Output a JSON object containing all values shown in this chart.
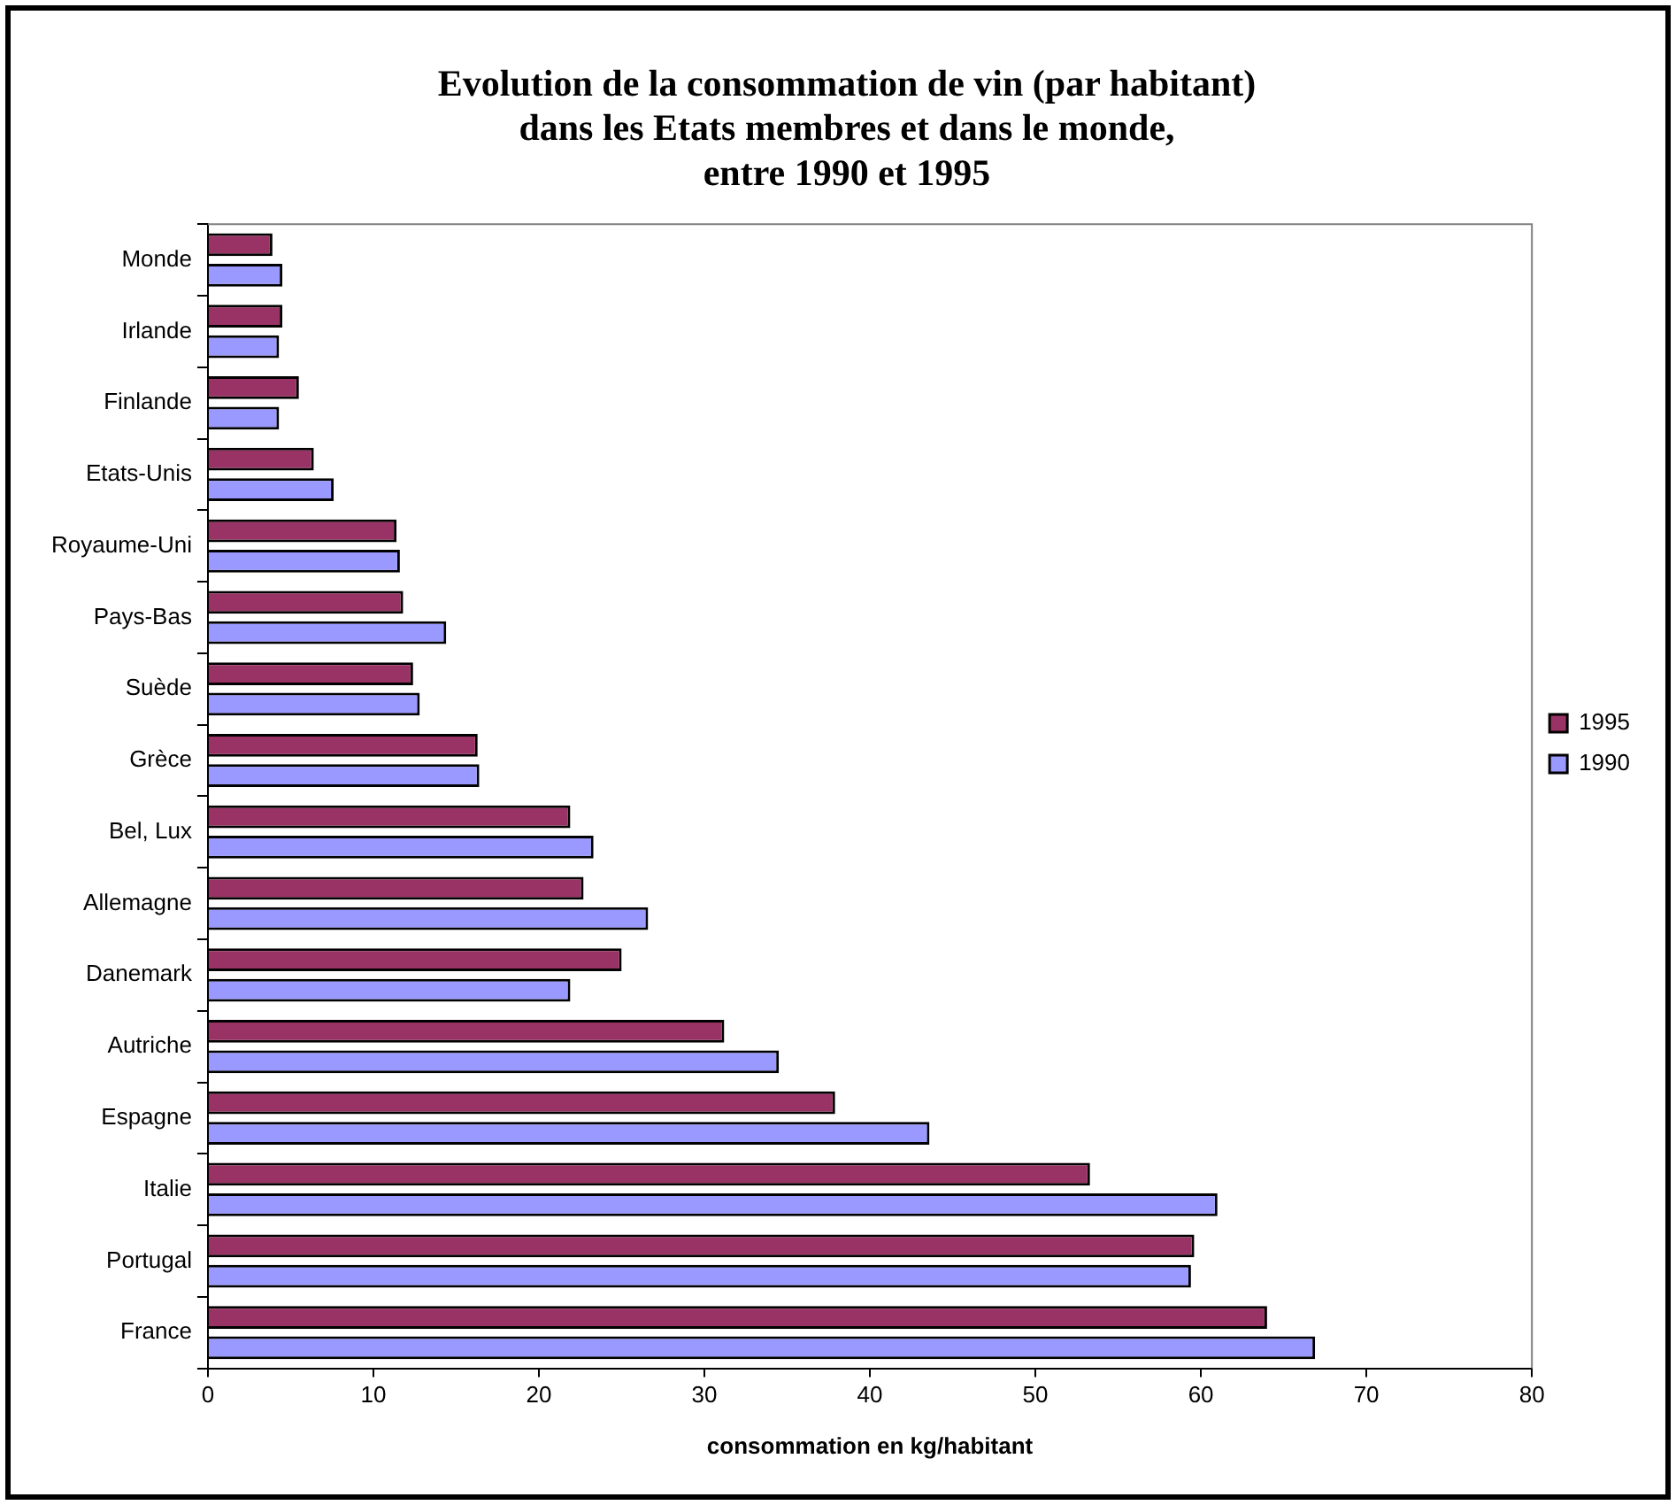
{
  "chart_data": {
    "type": "bar",
    "orientation": "horizontal",
    "title": "Evolution de la consommation de vin (par habitant)\ndans les Etats membres et dans le monde,\nentre 1990 et 1995",
    "xlabel": "consommation en kg/habitant",
    "categories": [
      "Monde",
      "Irlande",
      "Finlande",
      "Etats-Unis",
      "Royaume-Uni",
      "Pays-Bas",
      "Suède",
      "Grèce",
      "Bel, Lux",
      "Allemagne",
      "Danemark",
      "Autriche",
      "Espagne",
      "Italie",
      "Portugal",
      "France"
    ],
    "series": [
      {
        "name": "1995",
        "color": "#993366",
        "values": [
          3.9,
          4.5,
          5.5,
          6.4,
          11.4,
          11.8,
          12.4,
          16.3,
          21.9,
          22.7,
          25.0,
          31.2,
          37.9,
          53.3,
          59.6,
          64.0
        ]
      },
      {
        "name": "1990",
        "color": "#9999ff",
        "values": [
          4.5,
          4.3,
          4.3,
          7.6,
          11.6,
          14.4,
          12.8,
          16.4,
          23.3,
          26.6,
          21.9,
          34.5,
          43.6,
          61.0,
          59.4,
          66.9
        ]
      }
    ],
    "xlim": [
      0,
      80
    ],
    "xticks": [
      0,
      10,
      20,
      30,
      40,
      50,
      60,
      70,
      80
    ],
    "grid": false,
    "legend": "right"
  }
}
